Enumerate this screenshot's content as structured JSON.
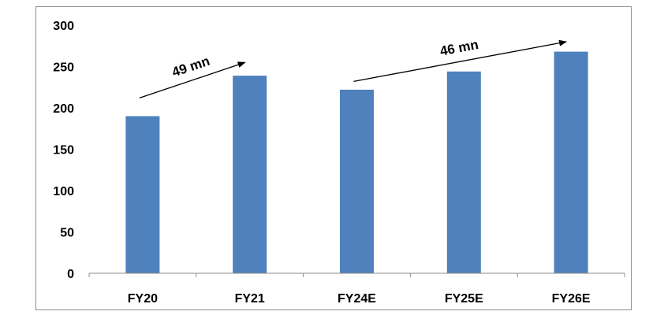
{
  "chart_data": {
    "type": "bar",
    "title": "",
    "xlabel": "",
    "ylabel": "",
    "categories": [
      "FY20",
      "FY21",
      "FY24E",
      "FY25E",
      "FY26E"
    ],
    "values": [
      190,
      239,
      222,
      244,
      268
    ],
    "ylim": [
      0,
      300
    ],
    "yticks": [
      0,
      50,
      100,
      150,
      200,
      250,
      300
    ],
    "grid": false,
    "legend": "none",
    "bar_color": "#4f81bd",
    "annotations": [
      {
        "text": "49 mn",
        "from_category": "FY20",
        "to_category": "FY21",
        "from_value": 212,
        "to_value": 255
      },
      {
        "text": "46 mn",
        "from_category": "FY24E",
        "to_category": "FY26E",
        "from_value": 232,
        "to_value": 280
      }
    ]
  }
}
